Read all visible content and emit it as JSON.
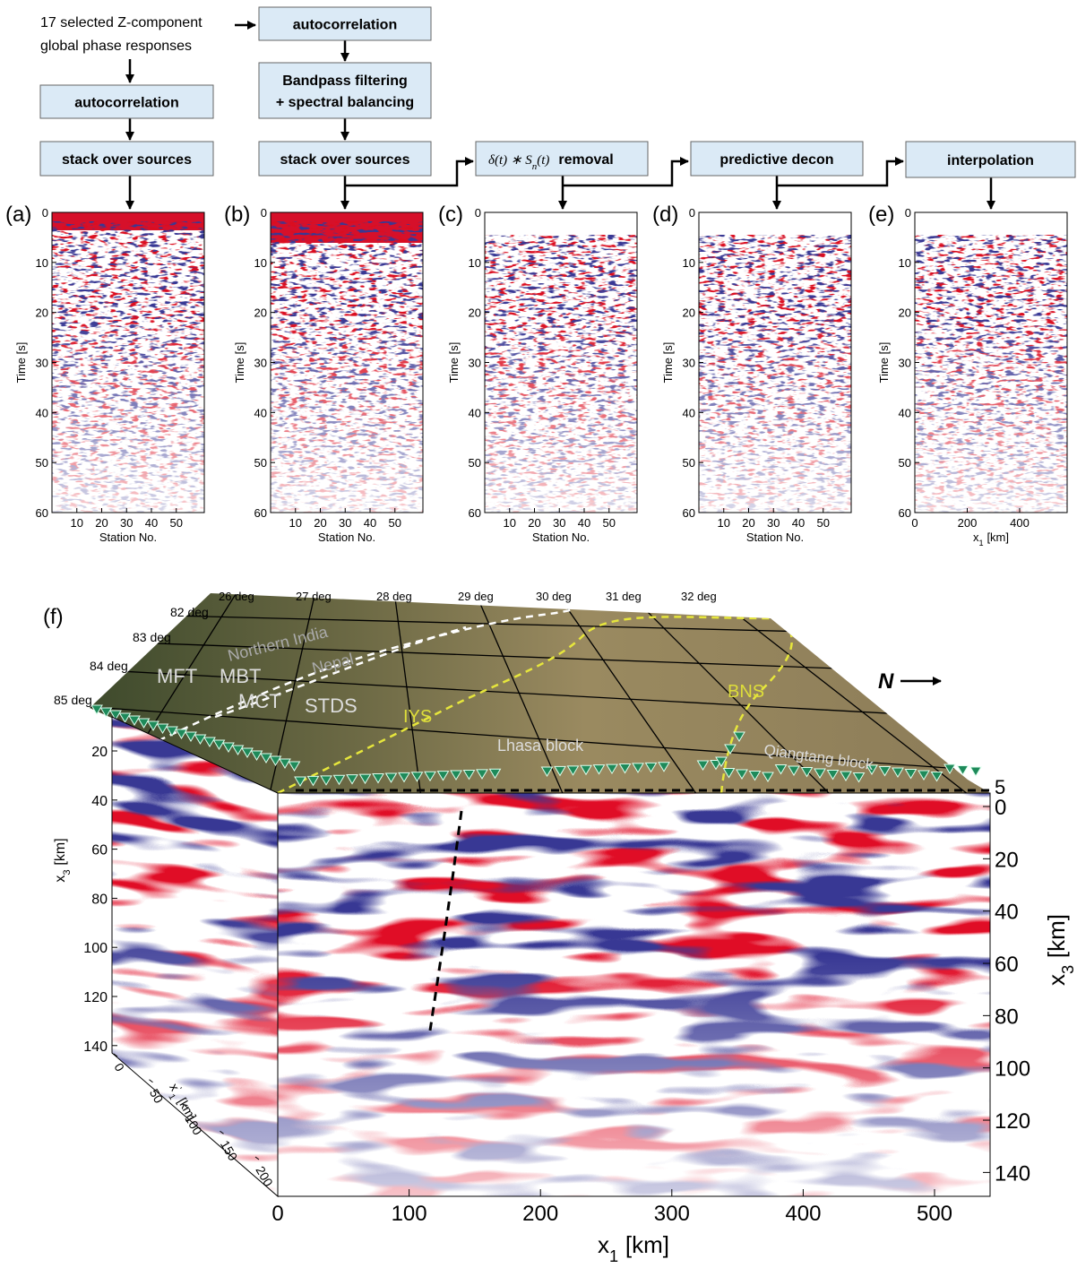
{
  "flowchart": {
    "input": [
      "17 selected Z-component",
      "global phase responses"
    ],
    "boxes": [
      [
        "autocorrelation"
      ],
      [
        "Bandpass filtering",
        "+ spectral balancing"
      ],
      [
        "autocorrelation"
      ],
      [
        "stack over sources"
      ],
      [
        "stack over sources"
      ],
      [
        "predictive decon"
      ],
      [
        "interpolation"
      ]
    ],
    "removal_box": {
      "math": "δ(t) ∗ S",
      "sub": "n",
      "tail": "(t)",
      "text": "removal"
    }
  },
  "panels": [
    {
      "label": "(a)",
      "ylabel": "Time [s]",
      "yticks": [
        0,
        10,
        20,
        30,
        40,
        50,
        60
      ],
      "xticks": [
        10,
        20,
        30,
        40,
        50
      ],
      "xlabel": "Station No."
    },
    {
      "label": "(b)",
      "ylabel": "Time [s]",
      "yticks": [
        0,
        10,
        20,
        30,
        40,
        50,
        60
      ],
      "xticks": [
        10,
        20,
        30,
        40,
        50
      ],
      "xlabel": "Station No."
    },
    {
      "label": "(c)",
      "ylabel": "Time [s]",
      "yticks": [
        0,
        10,
        20,
        30,
        40,
        50,
        60
      ],
      "xticks": [
        10,
        20,
        30,
        40,
        50
      ],
      "xlabel": "Station No."
    },
    {
      "label": "(d)",
      "ylabel": "Time [s]",
      "yticks": [
        0,
        10,
        20,
        30,
        40,
        50,
        60
      ],
      "xticks": [
        10,
        20,
        30,
        40,
        50
      ],
      "xlabel": "Station No."
    },
    {
      "label": "(e)",
      "ylabel": "Time [s]",
      "yticks": [
        0,
        10,
        20,
        30,
        40,
        50,
        60
      ],
      "xticks": [
        0,
        200,
        400
      ],
      "xlabel": {
        "main": "x",
        "sub": "1",
        "unit": "[km]"
      }
    }
  ],
  "block": {
    "label": "(f)",
    "longitudes": [
      "26 deg",
      "27 deg",
      "28 deg",
      "29 deg",
      "30 deg",
      "31 deg",
      "32 deg"
    ],
    "latitudes": [
      "82 deg",
      "83 deg",
      "84 deg",
      "85 deg"
    ],
    "map_labels": [
      "MFT",
      "MBT",
      "MCT",
      "STDS",
      "Northern India",
      "Nepal",
      "IYS",
      "Lhasa block",
      "BNS",
      "Qiangtang block"
    ],
    "north": "N",
    "depth_marker": 5,
    "front": {
      "xticks": [
        0,
        100,
        200,
        300,
        400,
        500
      ],
      "yticks": [
        0,
        20,
        40,
        60,
        80,
        100,
        120,
        140
      ],
      "xlabel": {
        "main": "x",
        "sub": "1",
        "unit": "[km]"
      },
      "ylabel": {
        "main": "x",
        "sub": "3",
        "unit": "[km]"
      }
    },
    "side": {
      "yticks": [
        20,
        40,
        60,
        80,
        100,
        120,
        140
      ],
      "xticks": [
        0,
        50,
        100,
        150,
        200
      ],
      "ylabel": {
        "main": "x",
        "sub": "3",
        "unit": "[km]"
      },
      "xlabel": {
        "main": "x",
        "sup": "'",
        "sub": "1",
        "unit": "[km]"
      }
    }
  }
}
